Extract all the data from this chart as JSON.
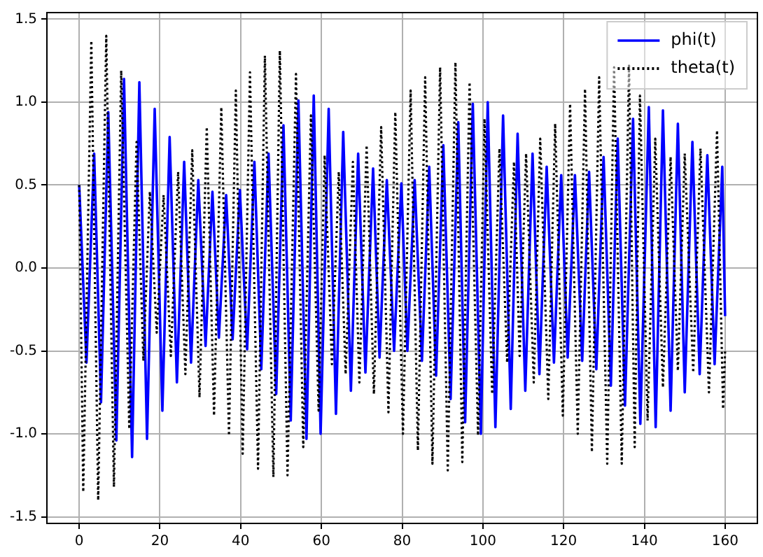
{
  "chart_data": {
    "type": "line",
    "xlim": [
      -8,
      168
    ],
    "ylim": [
      -1.54,
      1.54
    ],
    "xticks": [
      0,
      20,
      40,
      60,
      80,
      100,
      120,
      140,
      160
    ],
    "yticks": [
      -1.5,
      {
        "value": -1,
        "label": "-1.0"
      },
      -0.5,
      {
        "value": 0,
        "label": "0.0"
      },
      0.5,
      {
        "value": 1,
        "label": "1.0"
      },
      1.5
    ],
    "grid": true,
    "legend": "top right",
    "marker": "none",
    "series": [
      {
        "name": "phi(t)",
        "color": "#0000ff",
        "line_style": "solid",
        "x": [
          0,
          1.8,
          3.7,
          5.4,
          7.2,
          9.2,
          11.1,
          13.1,
          14.9,
          16.8,
          18.7,
          20.6,
          22.4,
          24.2,
          26.0,
          27.7,
          29.5,
          31.3,
          33.0,
          34.6,
          36.4,
          38.0,
          39.8,
          41.6,
          43.4,
          45.1,
          46.9,
          48.8,
          50.6,
          52.4,
          54.3,
          56.3,
          58.1,
          59.8,
          61.8,
          63.6,
          65.4,
          67.3,
          69.1,
          70.9,
          72.8,
          74.4,
          76.2,
          78.0,
          79.8,
          81.3,
          83.1,
          84.9,
          86.7,
          88.4,
          90.2,
          92.0,
          93.9,
          95.6,
          97.5,
          99.5,
          101.2,
          103.1,
          105.0,
          106.9,
          108.6,
          110.5,
          112.3,
          114.0,
          115.8,
          117.6,
          119.4,
          121.0,
          122.8,
          124.6,
          126.3,
          128.1,
          129.9,
          131.7,
          133.4,
          135.2,
          137.2,
          139.0,
          141.1,
          142.8,
          144.6,
          146.5,
          148.3,
          150.0,
          151.9,
          153.7,
          155.6,
          157.4,
          159.3,
          160
        ],
        "values": [
          0.5,
          -0.57,
          0.69,
          -0.81,
          0.94,
          -1.04,
          1.14,
          -1.14,
          1.12,
          -1.03,
          0.96,
          -0.86,
          0.79,
          -0.69,
          0.64,
          -0.57,
          0.53,
          -0.47,
          0.46,
          -0.42,
          0.44,
          -0.43,
          0.47,
          -0.49,
          0.64,
          -0.61,
          0.69,
          -0.76,
          0.86,
          -0.92,
          1.01,
          -1.03,
          1.04,
          -1.0,
          0.96,
          -0.88,
          0.82,
          -0.74,
          0.69,
          -0.63,
          0.6,
          -0.54,
          0.53,
          -0.5,
          0.51,
          -0.5,
          0.53,
          -0.56,
          0.61,
          -0.65,
          0.74,
          -0.79,
          0.88,
          -0.93,
          0.99,
          -1.0,
          1.0,
          -0.96,
          0.92,
          -0.85,
          0.81,
          -0.74,
          0.69,
          -0.64,
          0.61,
          -0.57,
          0.56,
          -0.54,
          0.56,
          -0.56,
          0.58,
          -0.61,
          0.67,
          -0.71,
          0.78,
          -0.83,
          0.9,
          -0.94,
          0.97,
          -0.96,
          0.95,
          -0.86,
          0.87,
          -0.75,
          0.76,
          -0.64,
          0.68,
          -0.58,
          0.61,
          -0.29
        ]
      },
      {
        "name": "theta(t)",
        "color": "#000000",
        "line_style": "dotted",
        "x": [
          0,
          1.0,
          3.0,
          4.7,
          6.7,
          8.6,
          10.4,
          12.4,
          14.2,
          15.9,
          17.5,
          19.2,
          20.9,
          22.7,
          24.5,
          26.3,
          28.0,
          29.8,
          31.6,
          33.4,
          35.2,
          37.1,
          38.8,
          40.5,
          42.3,
          44.3,
          46.0,
          48.1,
          49.7,
          51.6,
          53.7,
          55.5,
          57.4,
          59.3,
          60.8,
          62.6,
          64.3,
          66.0,
          67.8,
          69.4,
          71.2,
          73.0,
          74.8,
          76.6,
          78.3,
          80.2,
          82.1,
          83.9,
          85.7,
          87.5,
          89.4,
          91.3,
          93.2,
          94.9,
          96.7,
          98.8,
          100.4,
          102.3,
          104.1,
          106.0,
          107.7,
          109.1,
          110.7,
          112.6,
          114.2,
          116.2,
          117.9,
          119.8,
          121.6,
          123.5,
          125.3,
          127.0,
          128.8,
          130.8,
          132.5,
          134.4,
          136.2,
          137.6,
          138.9,
          140.8,
          142.7,
          144.6,
          146.5,
          148.3,
          150.0,
          152.1,
          153.9,
          156.0,
          158.0,
          159.5,
          160
        ],
        "values": [
          0.5,
          -1.35,
          1.37,
          -1.4,
          1.4,
          -1.32,
          1.19,
          -0.97,
          0.76,
          -0.56,
          0.46,
          -0.39,
          0.44,
          -0.53,
          0.58,
          -0.64,
          0.71,
          -0.78,
          0.85,
          -0.89,
          0.97,
          -1.01,
          1.07,
          -1.12,
          1.18,
          -1.21,
          1.28,
          -1.26,
          1.31,
          -1.25,
          1.17,
          -1.08,
          0.92,
          -0.86,
          0.68,
          -0.58,
          0.58,
          -0.64,
          0.64,
          -0.69,
          0.74,
          -0.76,
          0.85,
          -0.87,
          0.94,
          -1.0,
          1.07,
          -1.1,
          1.15,
          -1.18,
          1.21,
          -1.22,
          1.24,
          -1.17,
          1.12,
          -1.01,
          0.9,
          -0.76,
          0.72,
          -0.57,
          0.64,
          -0.53,
          0.69,
          -0.69,
          0.78,
          -0.79,
          0.87,
          -0.89,
          0.99,
          -1.0,
          1.08,
          -1.11,
          1.15,
          -1.18,
          1.21,
          -1.18,
          1.22,
          -1.08,
          1.04,
          -0.92,
          0.78,
          -0.72,
          0.67,
          -0.62,
          0.69,
          -0.63,
          0.72,
          -0.75,
          0.83,
          -0.85,
          -0.5
        ]
      }
    ]
  }
}
